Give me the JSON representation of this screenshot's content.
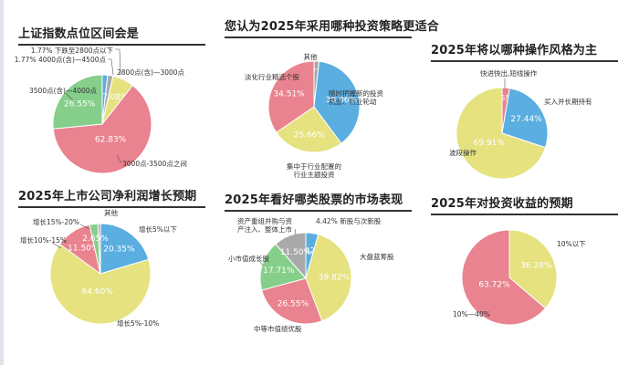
{
  "colors": {
    "blue": "#5aaee0",
    "pink": "#e9838f",
    "green": "#85cf8a",
    "yellow": "#e5e27f",
    "gray": "#a9a9a9"
  },
  "chart_data": [
    {
      "type": "pie",
      "title": "上证指数点位区间会是",
      "slices": [
        {
          "label": "1.77% 下跌至2800点以下",
          "value": 1.77,
          "color": "blue"
        },
        {
          "label": "1.77% 4000点(含)—4500点",
          "value": 1.77,
          "color": "gray"
        },
        {
          "label": "2800点(含)—3000点",
          "value": 7.08,
          "color": "yellow"
        },
        {
          "label": "3000点-3500点之间",
          "value": 62.83,
          "color": "pink"
        },
        {
          "label": "3500点(含)—4000点",
          "value": 26.55,
          "color": "green"
        }
      ]
    },
    {
      "type": "pie",
      "title": "您认为2025年采用哪种投资策略更适合",
      "slices": [
        {
          "label": "其他",
          "value": 1.77,
          "color": "gray"
        },
        {
          "label": "随时把握新的投资机会、行业轮动",
          "value": 38.06,
          "color": "blue"
        },
        {
          "label": "集中于行业配置的行业主题投资",
          "value": 25.66,
          "color": "yellow"
        },
        {
          "label": "淡化行业精选个股",
          "value": 34.51,
          "color": "pink"
        }
      ]
    },
    {
      "type": "pie",
      "title": "2025年将以哪种操作风格为主",
      "slices": [
        {
          "label": "快进快出,短线操作",
          "value": 2.65,
          "color": "pink"
        },
        {
          "label": "买入并长期持有",
          "value": 27.44,
          "color": "blue"
        },
        {
          "label": "波段操作",
          "value": 69.91,
          "color": "yellow"
        }
      ]
    },
    {
      "type": "pie",
      "title": "2025年上市公司净利润增长预期",
      "slices": [
        {
          "label": "其他",
          "value": 0.88,
          "color": "gray"
        },
        {
          "label": "增长5%以下",
          "value": 20.35,
          "color": "blue"
        },
        {
          "label": "增长5%-10%",
          "value": 64.6,
          "color": "yellow"
        },
        {
          "label": "增长10%-15%",
          "value": 11.5,
          "color": "pink"
        },
        {
          "label": "增长15%-20%",
          "value": 2.65,
          "color": "green"
        }
      ]
    },
    {
      "type": "pie",
      "title": "2025年看好哪类股票的市场表现",
      "slices": [
        {
          "label": "4.42% 新股与次新股",
          "value": 4.42,
          "color": "blue"
        },
        {
          "label": "大盘蓝筹股",
          "value": 39.82,
          "color": "yellow"
        },
        {
          "label": "中等市值绩优股",
          "value": 26.55,
          "color": "pink"
        },
        {
          "label": "小市值成长股",
          "value": 17.71,
          "color": "green"
        },
        {
          "label": "资产重组并购与资产注入、整体上市",
          "value": 11.5,
          "color": "gray"
        }
      ]
    },
    {
      "type": "pie",
      "title": "2025年对投资收益的预期",
      "slices": [
        {
          "label": "10%以下",
          "value": 36.28,
          "color": "yellow"
        },
        {
          "label": "10%—40%",
          "value": 63.72,
          "color": "pink"
        }
      ]
    }
  ]
}
